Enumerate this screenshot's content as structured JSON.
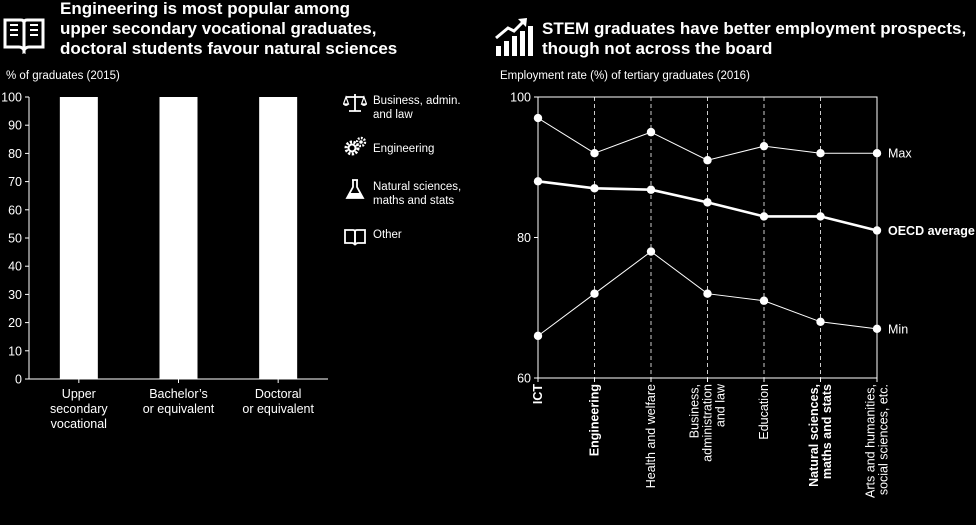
{
  "left_panel": {
    "title_lines": [
      "Engineering is most popular among",
      "upper secondary vocational graduates,",
      "doctoral students favour natural sciences"
    ],
    "unit_label": "% of graduates (2015)",
    "icon": "book-icon",
    "legend": [
      {
        "label_lines": [
          "Business, admin.",
          "and law"
        ],
        "icon": "scales-icon"
      },
      {
        "label_lines": [
          "Engineering"
        ],
        "icon": "gears-icon"
      },
      {
        "label_lines": [
          "Natural sciences,",
          "maths and stats"
        ],
        "icon": "flask-icon"
      },
      {
        "label_lines": [
          "Other"
        ],
        "icon": "book-icon"
      }
    ]
  },
  "right_panel": {
    "title_lines": [
      "STEM graduates have better employment prospects,",
      "though not across the board"
    ],
    "unit_label": "Employment rate (%) of tertiary graduates (2016)",
    "icon": "rising-chart-icon"
  },
  "chart_data": [
    {
      "type": "bar",
      "categories": [
        "Upper secondary vocational",
        "Bachelor’s or equivalent",
        "Doctoral or equivalent"
      ],
      "category_lines": [
        [
          "Upper",
          "secondary",
          "vocational"
        ],
        [
          "Bachelor’s",
          "or equivalent"
        ],
        [
          "Doctoral",
          "or equivalent"
        ]
      ],
      "values": [
        100,
        100,
        100
      ],
      "ylim": [
        0,
        100
      ],
      "yticks": [
        0,
        10,
        20,
        30,
        40,
        50,
        60,
        70,
        80,
        90,
        100
      ],
      "bar_color": "#ffffff",
      "grid": false
    },
    {
      "type": "line",
      "categories": [
        "ICT",
        "Engineering",
        "Health and welfare",
        "Business, administration and law",
        "Education",
        "Natural sciences, maths and stats",
        "Arts and humanities, social sciences, etc."
      ],
      "category_lines": [
        [
          "ICT"
        ],
        [
          "Engineering"
        ],
        [
          "Health and welfare"
        ],
        [
          "Business,",
          "administration",
          "and law"
        ],
        [
          "Education"
        ],
        [
          "Natural sciences,",
          "maths and stats"
        ],
        [
          "Arts and humanities,",
          "social sciences, etc."
        ]
      ],
      "bold_categories": [
        true,
        true,
        false,
        false,
        false,
        true,
        false
      ],
      "series": [
        {
          "name": "Max",
          "values": [
            97,
            92,
            95,
            91,
            93,
            92,
            92
          ],
          "bold": false
        },
        {
          "name": "OECD average",
          "values": [
            88,
            87,
            86.8,
            85,
            83,
            83,
            81
          ],
          "bold": true
        },
        {
          "name": "Min",
          "values": [
            66,
            72,
            78,
            72,
            71,
            68,
            67
          ],
          "bold": false
        }
      ],
      "ylim": [
        60,
        100
      ],
      "yticks": [
        60,
        80,
        100
      ],
      "grid": "vertical dashed"
    }
  ]
}
